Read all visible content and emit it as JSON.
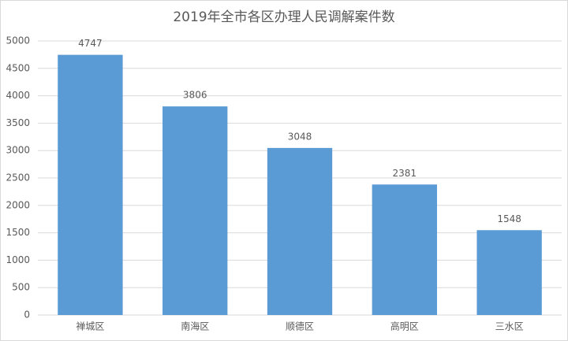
{
  "chart_data": {
    "type": "bar",
    "title": "2019年全市各区办理人民调解案件数",
    "categories": [
      "禅城区",
      "南海区",
      "顺德区",
      "高明区",
      "三水区"
    ],
    "values": [
      4747,
      3806,
      3048,
      2381,
      1548
    ],
    "color": "#5b9bd5",
    "ylim": [
      0,
      5000
    ],
    "yticks": [
      0,
      500,
      1000,
      1500,
      2000,
      2500,
      3000,
      3500,
      4000,
      4500,
      5000
    ],
    "grid": true
  }
}
